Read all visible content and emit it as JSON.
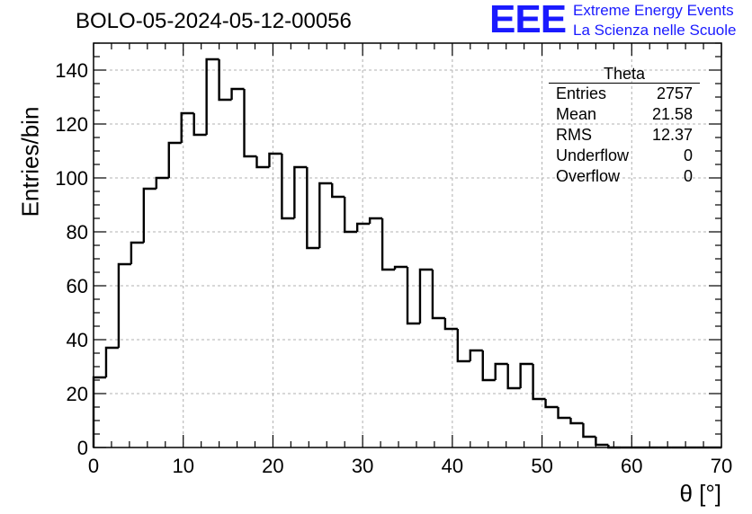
{
  "title": "BOLO-05-2024-05-12-00056",
  "logo": {
    "mark": "EEE",
    "line1": "Extreme Energy Events",
    "line2": "La Scienza nelle Scuole",
    "color": "#1a1aff"
  },
  "stats_box": {
    "title": "Theta",
    "rows": [
      {
        "label": "Entries",
        "value": "2757"
      },
      {
        "label": "Mean",
        "value": "21.58"
      },
      {
        "label": "RMS",
        "value": "12.37"
      },
      {
        "label": "Underflow",
        "value": "0"
      },
      {
        "label": "Overflow",
        "value": "0"
      }
    ]
  },
  "chart_data": {
    "type": "bar",
    "style": "step-histogram",
    "xlabel": "θ [°]",
    "ylabel": "Entries/bin",
    "xlim": [
      0,
      70
    ],
    "ylim": [
      0,
      150
    ],
    "bin_width": 1.4,
    "x_ticks": [
      0,
      10,
      20,
      30,
      40,
      50,
      60,
      70
    ],
    "y_ticks": [
      0,
      20,
      40,
      60,
      80,
      100,
      120,
      140
    ],
    "grid": true,
    "line_color": "#000000",
    "bin_edges": [
      0,
      1.4,
      2.8,
      4.2,
      5.6,
      7.0,
      8.4,
      9.8,
      11.2,
      12.6,
      14.0,
      15.4,
      16.8,
      18.2,
      19.6,
      21.0,
      22.4,
      23.8,
      25.2,
      26.6,
      28.0,
      29.4,
      30.8,
      32.2,
      33.6,
      35.0,
      36.4,
      37.8,
      39.2,
      40.6,
      42.0,
      43.4,
      44.8,
      46.2,
      47.6,
      49.0,
      50.4,
      51.8,
      53.2,
      54.6,
      56.0,
      57.4,
      58.8,
      60.2,
      61.6,
      63.0,
      64.4,
      65.8,
      67.2,
      68.6,
      70.0
    ],
    "values": [
      26,
      37,
      68,
      76,
      96,
      100,
      113,
      124,
      116,
      144,
      129,
      133,
      108,
      104,
      109,
      85,
      104,
      74,
      98,
      93,
      80,
      83,
      85,
      66,
      67,
      46,
      66,
      48,
      44,
      32,
      36,
      25,
      31,
      22,
      31,
      18,
      15,
      11,
      9,
      4,
      1,
      0,
      0,
      0,
      0,
      0,
      0,
      0,
      0,
      0
    ]
  }
}
